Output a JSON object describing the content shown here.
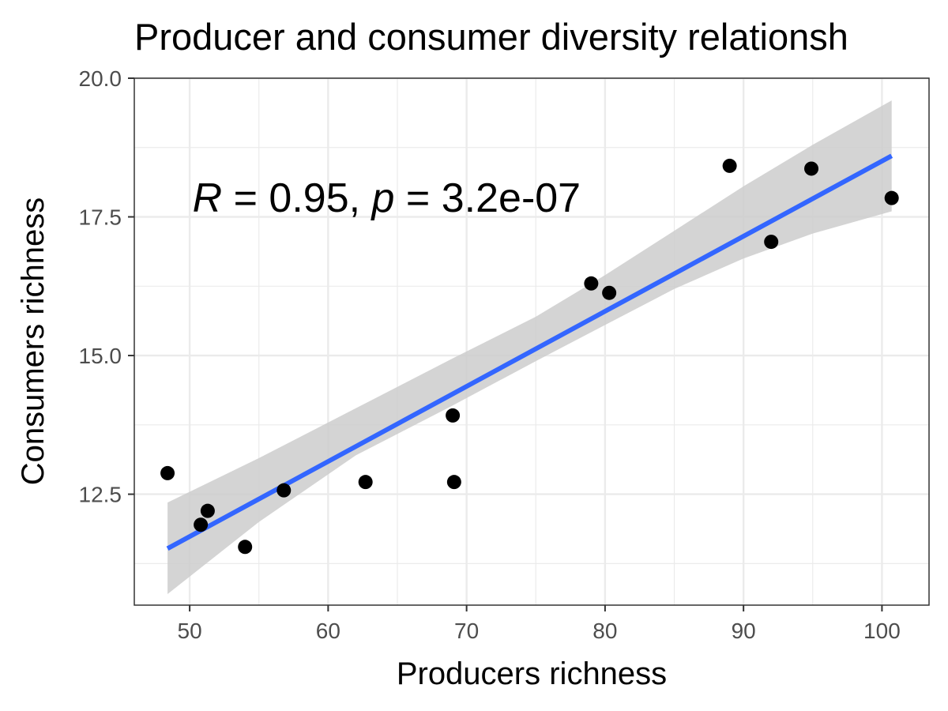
{
  "chart_data": {
    "type": "scatter",
    "title": "Producer and consumer diversity relationsh",
    "xlabel": "Producers richness",
    "ylabel": "Consumers richness",
    "xlim": [
      46,
      103.4
    ],
    "ylim": [
      10.5,
      20.0
    ],
    "x_ticks": [
      50,
      60,
      70,
      80,
      90,
      100
    ],
    "x_tick_labels": [
      "50",
      "60",
      "70",
      "80",
      "90",
      "100"
    ],
    "y_ticks": [
      12.5,
      15.0,
      17.5,
      20.0
    ],
    "y_tick_labels": [
      "12.5",
      "15.0",
      "17.5",
      "20.0"
    ],
    "grid": true,
    "points": [
      {
        "x": 48.4,
        "y": 12.88
      },
      {
        "x": 50.8,
        "y": 11.95
      },
      {
        "x": 51.3,
        "y": 12.2
      },
      {
        "x": 54.0,
        "y": 11.55
      },
      {
        "x": 56.8,
        "y": 12.57
      },
      {
        "x": 62.7,
        "y": 12.72
      },
      {
        "x": 69.0,
        "y": 13.92
      },
      {
        "x": 69.1,
        "y": 12.72
      },
      {
        "x": 79.0,
        "y": 16.3
      },
      {
        "x": 80.3,
        "y": 16.13
      },
      {
        "x": 89.0,
        "y": 18.42
      },
      {
        "x": 92.0,
        "y": 17.05
      },
      {
        "x": 94.9,
        "y": 18.37
      },
      {
        "x": 100.7,
        "y": 17.84
      }
    ],
    "fit_line": {
      "color": "#3366ff",
      "points": [
        {
          "x": 48.4,
          "y": 11.52
        },
        {
          "x": 100.7,
          "y": 18.6
        }
      ]
    },
    "confidence_band": {
      "color": "#cccccc",
      "x": [
        48.4,
        55,
        62,
        69,
        75,
        80,
        85,
        90,
        95,
        100.7
      ],
      "lower": [
        10.7,
        12.0,
        13.2,
        14.1,
        14.9,
        15.55,
        16.2,
        16.75,
        17.2,
        17.6
      ],
      "upper": [
        12.35,
        13.15,
        14.05,
        14.95,
        15.7,
        16.45,
        17.25,
        18.05,
        18.8,
        19.6
      ]
    },
    "annotation": {
      "r_symbol": "R",
      "r_value": " = 0.95, ",
      "p_symbol": "p",
      "p_value": " = 3.2e-07",
      "x": 50.2,
      "y": 17.85
    },
    "colors": {
      "point": "#000000",
      "grid": "#ebebeb",
      "panel_border": "#333333"
    }
  }
}
